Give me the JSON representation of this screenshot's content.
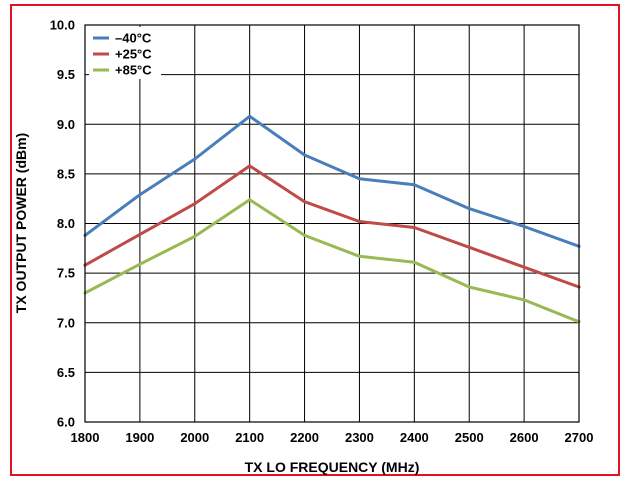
{
  "chart_data": {
    "type": "line",
    "xlabel": "TX LO FREQUENCY (MHz)",
    "ylabel": "TX OUTPUT POWER (dBm)",
    "x": [
      1800,
      1900,
      2000,
      2100,
      2200,
      2300,
      2400,
      2500,
      2600,
      2700
    ],
    "xlim": [
      1800,
      2700
    ],
    "ylim": [
      6.0,
      10.0
    ],
    "xticks": [
      "1800",
      "1900",
      "2000",
      "2100",
      "2200",
      "2300",
      "2400",
      "2500",
      "2600",
      "2700"
    ],
    "yticks": [
      "6.0",
      "6.5",
      "7.0",
      "7.5",
      "8.0",
      "8.5",
      "9.0",
      "9.5",
      "10.0"
    ],
    "grid": true,
    "legend_position": "top-left",
    "series": [
      {
        "name": "–40°C",
        "color": "#4a7ebb",
        "values": [
          7.88,
          8.29,
          8.65,
          9.08,
          8.69,
          8.45,
          8.39,
          8.15,
          7.97,
          7.77
        ]
      },
      {
        "name": "+25°C",
        "color": "#be4b48",
        "values": [
          7.58,
          7.89,
          8.2,
          8.58,
          8.22,
          8.02,
          7.96,
          7.76,
          7.56,
          7.36
        ]
      },
      {
        "name": "+85°C",
        "color": "#98b954",
        "values": [
          7.3,
          7.59,
          7.87,
          8.24,
          7.88,
          7.67,
          7.61,
          7.36,
          7.23,
          7.01
        ]
      }
    ]
  }
}
